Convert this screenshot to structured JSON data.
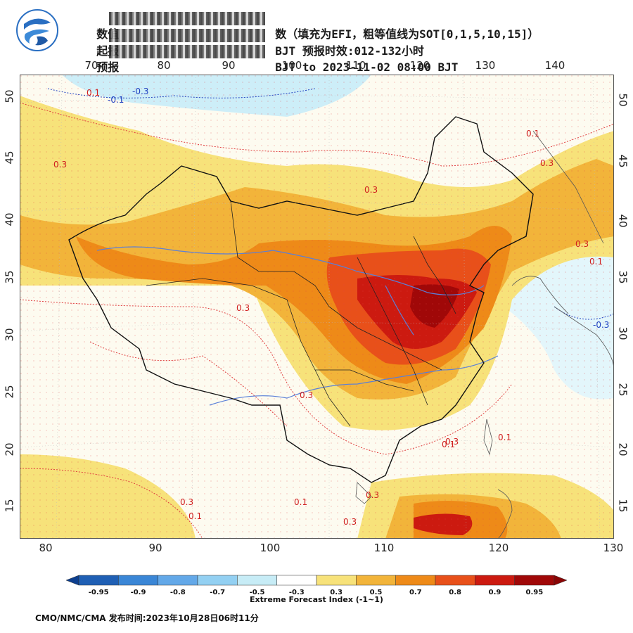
{
  "header": {
    "line1_prefix": "数值",
    "line1_suffix": "数（填充为EFI，粗等值线为SOT[0,1,5,10,15]）",
    "line2_prefix": "起报",
    "line2_suffix": "BJT 预报时效:012-132小时",
    "line3_prefix": "预报",
    "line3_suffix": "BJT to 2023-11-02 08:00 BJT"
  },
  "map": {
    "lon_top": [
      "70",
      "80",
      "90",
      "100",
      "110",
      "120",
      "130",
      "140"
    ],
    "lon_bottom": [
      "80",
      "90",
      "100",
      "110",
      "120",
      "130"
    ],
    "lat_left": [
      "50",
      "45",
      "40",
      "35",
      "30",
      "25",
      "20",
      "15"
    ],
    "lat_right": [
      "50",
      "45",
      "40",
      "35",
      "30",
      "25",
      "20",
      "15"
    ],
    "contour_labels": [
      {
        "text": "0.1",
        "color": "#d02020"
      },
      {
        "text": "-0.1",
        "color": "#2040c0"
      },
      {
        "text": "-0.3",
        "color": "#2040c0"
      },
      {
        "text": "0.3",
        "color": "#d02020"
      },
      {
        "text": "0.3",
        "color": "#d02020"
      },
      {
        "text": "0.3",
        "color": "#d02020"
      },
      {
        "text": "0.1",
        "color": "#d02020"
      },
      {
        "text": "0.3",
        "color": "#d02020"
      },
      {
        "text": "0.3",
        "color": "#d02020"
      },
      {
        "text": "0.1",
        "color": "#d02020"
      },
      {
        "text": "-0.3",
        "color": "#2040c0"
      },
      {
        "text": "0.3",
        "color": "#d02020"
      },
      {
        "text": "0.1",
        "color": "#d02020"
      },
      {
        "text": "0.3",
        "color": "#d02020"
      },
      {
        "text": "0.1",
        "color": "#d02020"
      },
      {
        "text": "0.1",
        "color": "#d02020"
      },
      {
        "text": "0.3",
        "color": "#d02020"
      },
      {
        "text": "0.1",
        "color": "#d02020"
      },
      {
        "text": "0.3",
        "color": "#d02020"
      },
      {
        "text": "0.3",
        "color": "#d02020"
      }
    ]
  },
  "colorbar": {
    "ticks": [
      "-0.95",
      "-0.9",
      "-0.8",
      "-0.7",
      "-0.5",
      "-0.3",
      "0.3",
      "0.5",
      "0.7",
      "0.8",
      "0.9",
      "0.95"
    ],
    "colors": [
      "#1f5fb4",
      "#3a86d6",
      "#63a8e8",
      "#93d0f2",
      "#c7ecf6",
      "#ffffff",
      "#f7e27a",
      "#f2b43a",
      "#ee8a18",
      "#e8501a",
      "#cc1a10",
      "#a00808"
    ],
    "title": "Extreme Forecast Index (-1~1)"
  },
  "footer": {
    "text": "CMO/NMC/CMA 发布时间:2023年10月28日06时11分"
  }
}
